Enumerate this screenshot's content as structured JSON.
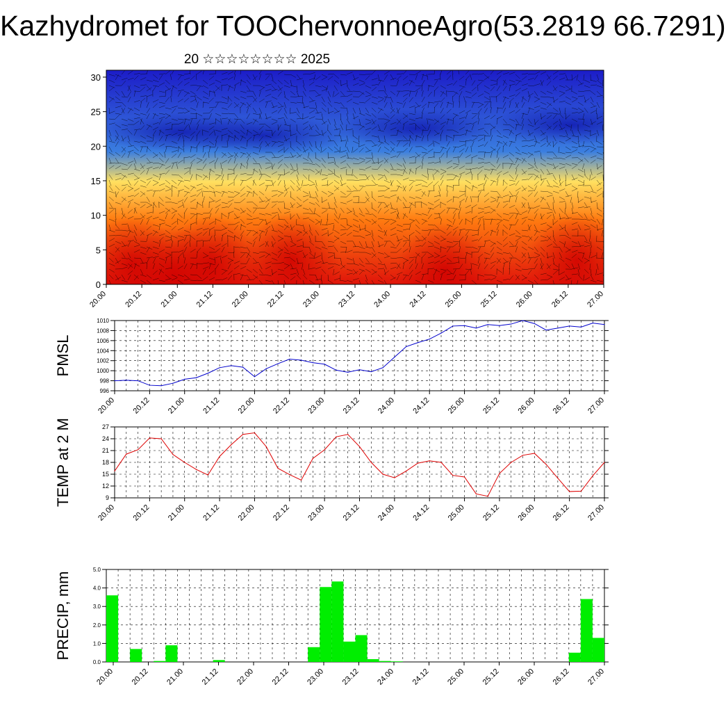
{
  "title": "Kazhydromet for TOOChervonnoeAgro(53.2819 66.7291)",
  "subtitle": "20 ☆☆☆☆☆☆☆☆ 2025",
  "time_labels": [
    "20.00",
    "20.12",
    "21.00",
    "21.12",
    "22.00",
    "22.12",
    "23.00",
    "23.12",
    "24.00",
    "24.12",
    "25.00",
    "25.12",
    "26.00",
    "26.12",
    "27.00"
  ],
  "chart_data": [
    {
      "type": "heatmap",
      "title": "",
      "xlabel": "",
      "ylabel": "",
      "x": [
        "20.00",
        "20.12",
        "21.00",
        "21.12",
        "22.00",
        "22.12",
        "23.00",
        "23.12",
        "24.00",
        "24.12",
        "25.00",
        "25.12",
        "26.00",
        "26.12",
        "27.00"
      ],
      "ylim": [
        0,
        31
      ],
      "yticks": [
        0,
        5,
        10,
        15,
        20,
        25,
        30
      ],
      "colormap": [
        "#e0140a",
        "#ff7a10",
        "#ffe060",
        "#3a7ee0",
        "#1c1cc8"
      ],
      "overlay": "wind-barbs"
    },
    {
      "type": "line",
      "ylabel": "PMSL",
      "ylim": [
        996,
        1010
      ],
      "yticks": [
        996,
        998,
        1000,
        1002,
        1004,
        1006,
        1008,
        1010
      ],
      "xlim": [
        0,
        42
      ],
      "color": "#0000cc",
      "x": [
        0,
        1,
        2,
        3,
        4,
        5,
        6,
        7,
        8,
        9,
        10,
        11,
        12,
        13,
        14,
        15,
        16,
        17,
        18,
        19,
        20,
        21,
        22,
        23,
        24,
        25,
        26,
        27,
        28,
        29,
        30,
        31,
        32,
        33,
        34,
        35,
        36,
        37,
        38,
        39,
        40,
        41,
        42
      ],
      "values": [
        998.0,
        998.1,
        998.0,
        997.1,
        997.0,
        997.5,
        998.3,
        998.6,
        999.5,
        1000.6,
        1001.0,
        1000.7,
        998.8,
        1000.4,
        1001.4,
        1002.3,
        1002.1,
        1001.6,
        1001.3,
        1000.1,
        999.7,
        1000.2,
        999.8,
        1000.6,
        1002.7,
        1004.8,
        1005.6,
        1006.3,
        1007.5,
        1008.9,
        1009.0,
        1008.5,
        1009.2,
        1009.0,
        1009.3,
        1010.0,
        1009.4,
        1008.1,
        1008.5,
        1008.9,
        1008.7,
        1009.5,
        1009.2
      ]
    },
    {
      "type": "line",
      "ylabel": "TEMP at 2 M",
      "ylim": [
        9,
        27
      ],
      "yticks": [
        9,
        12,
        15,
        18,
        21,
        24,
        27
      ],
      "xlim": [
        0,
        42
      ],
      "color": "#dd0000",
      "x": [
        0,
        1,
        2,
        3,
        4,
        5,
        6,
        7,
        8,
        9,
        10,
        11,
        12,
        13,
        14,
        15,
        16,
        17,
        18,
        19,
        20,
        21,
        22,
        23,
        24,
        25,
        26,
        27,
        28,
        29,
        30,
        31,
        32,
        33,
        34,
        35,
        36,
        37,
        38,
        39,
        40,
        41,
        42
      ],
      "values": [
        15.8,
        20.1,
        21.2,
        24.2,
        24.0,
        20.0,
        18.0,
        16.2,
        14.8,
        19.5,
        22.5,
        25.1,
        25.5,
        22.0,
        16.5,
        14.9,
        13.5,
        19.0,
        21.2,
        24.5,
        25.1,
        22.0,
        18.0,
        15.0,
        14.1,
        15.8,
        17.8,
        18.4,
        18.0,
        14.7,
        14.3,
        10.0,
        9.4,
        15.2,
        18.0,
        19.8,
        20.3,
        17.5,
        14.0,
        10.6,
        10.7,
        14.6,
        18.0
      ]
    },
    {
      "type": "bar",
      "ylabel": "PRECIP, mm",
      "ylim": [
        0,
        5.0
      ],
      "yticks": [
        "0.0",
        "1.0",
        "2.0",
        "3.0",
        "4.0",
        "5.0"
      ],
      "xlim": [
        0,
        42
      ],
      "color": "#00ee00",
      "x": [
        1,
        3,
        5,
        6,
        10,
        18,
        19,
        20,
        21,
        22,
        23,
        24,
        25,
        40,
        41,
        42
      ],
      "values": [
        3.6,
        0.7,
        0.05,
        0.9,
        0.1,
        0.8,
        4.05,
        4.35,
        1.1,
        1.45,
        0.15,
        0.05,
        0.03,
        0.5,
        3.4,
        1.3
      ]
    }
  ]
}
